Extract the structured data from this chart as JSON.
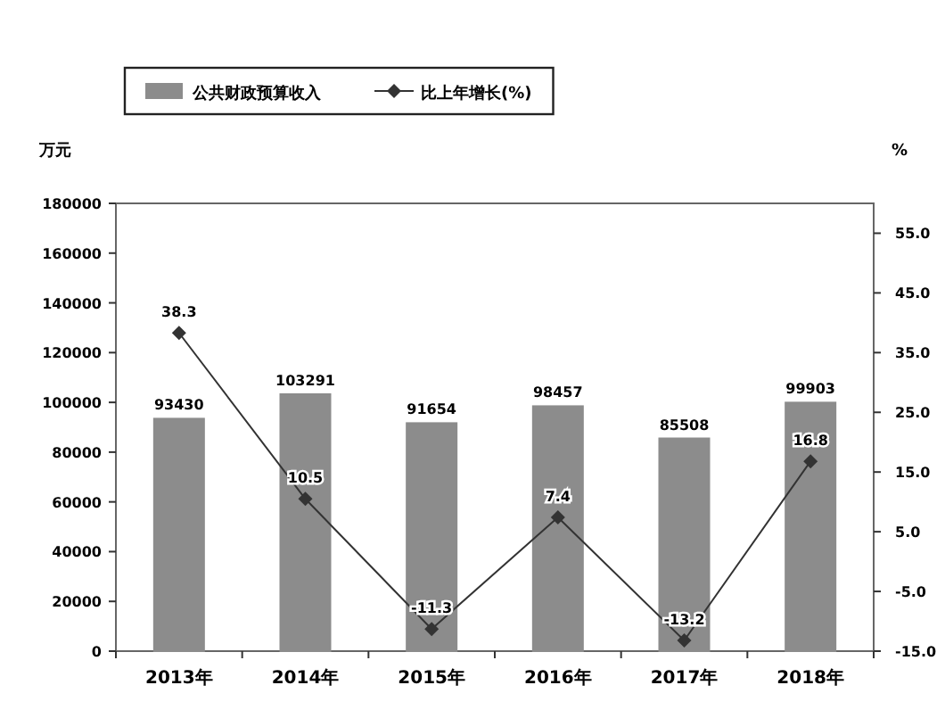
{
  "chart_data": {
    "type": "bar",
    "categories": [
      "2013年",
      "2014年",
      "2015年",
      "2016年",
      "2017年",
      "2018年"
    ],
    "ylabel": "万元",
    "y2label": "%",
    "ylim": [
      0,
      180000
    ],
    "yticks": [
      0,
      20000,
      40000,
      60000,
      80000,
      100000,
      120000,
      140000,
      160000,
      180000
    ],
    "y2lim": [
      -15,
      60
    ],
    "y2ticks": [
      {
        "value": -15,
        "label": "-15.0"
      },
      {
        "value": -5,
        "label": "-5.0"
      },
      {
        "value": 5,
        "label": "5.0"
      },
      {
        "value": 15,
        "label": "15.0"
      },
      {
        "value": 25,
        "label": "25.0"
      },
      {
        "value": 35,
        "label": "35.0"
      },
      {
        "value": 45,
        "label": "45.0"
      },
      {
        "value": 55,
        "label": "55.0"
      }
    ],
    "series": [
      {
        "name": "公共财政预算收入",
        "color": "#8c8c8c",
        "values": [
          93430,
          103291,
          91654,
          98457,
          85508,
          99903
        ]
      },
      {
        "name": "比上年增长(%)",
        "type": "line",
        "axis": "y2",
        "color": "#333333",
        "values": [
          38.3,
          10.5,
          -11.3,
          7.4,
          -13.2,
          16.8
        ]
      }
    ],
    "marker": "diamond",
    "data_labels": true,
    "legend": "top",
    "grid": false
  }
}
